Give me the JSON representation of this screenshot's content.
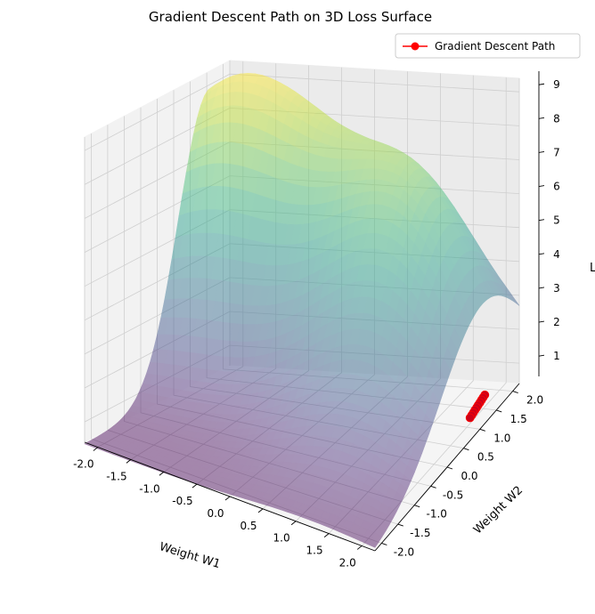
{
  "chart_data": {
    "type": "surface3d",
    "title": "Gradient Descent Path on 3D Loss Surface",
    "xlabel": "Weight W1",
    "ylabel": "Weight W2",
    "zlabel": "L",
    "xlim": [
      -2.2,
      2.2
    ],
    "ylim": [
      -2.2,
      2.2
    ],
    "zlim": [
      0.4,
      9.4
    ],
    "x_ticks": [
      -2.0,
      -1.5,
      -1.0,
      -0.5,
      0.0,
      0.5,
      1.0,
      1.5,
      2.0
    ],
    "y_ticks": [
      -2.0,
      -1.5,
      -1.0,
      -0.5,
      0.0,
      0.5,
      1.0,
      1.5,
      2.0
    ],
    "z_ticks": [
      1,
      2,
      3,
      4,
      5,
      6,
      7,
      8,
      9
    ],
    "x_tick_labels": [
      "-2.0",
      "-1.5",
      "-1.0",
      "-0.5",
      "0.0",
      "0.5",
      "1.0",
      "1.5",
      "2.0"
    ],
    "y_tick_labels": [
      "-2.0",
      "-1.5",
      "-1.0",
      "-0.5",
      "0.0",
      "0.5",
      "1.0",
      "1.5",
      "2.0"
    ],
    "z_tick_labels": [
      "1",
      "2",
      "3",
      "4",
      "5",
      "6",
      "7",
      "8",
      "9"
    ],
    "colormap": "viridis",
    "surface_alpha": 0.45,
    "legend_position": "top-right",
    "series": [
      {
        "name": "Gradient Descent Path",
        "color": "#ff0000",
        "marker": "o",
        "points": [
          {
            "x": 2.0,
            "y": 1.55,
            "z": 0.75
          },
          {
            "x": 2.0,
            "y": 1.5,
            "z": 0.73
          },
          {
            "x": 2.0,
            "y": 1.45,
            "z": 0.71
          },
          {
            "x": 2.0,
            "y": 1.4,
            "z": 0.69
          },
          {
            "x": 2.0,
            "y": 1.35,
            "z": 0.67
          },
          {
            "x": 2.0,
            "y": 1.3,
            "z": 0.65
          },
          {
            "x": 2.0,
            "y": 1.25,
            "z": 0.63
          },
          {
            "x": 2.0,
            "y": 1.2,
            "z": 0.61
          },
          {
            "x": 2.0,
            "y": 1.15,
            "z": 0.59
          },
          {
            "x": 2.0,
            "y": 1.1,
            "z": 0.57
          }
        ]
      }
    ]
  }
}
